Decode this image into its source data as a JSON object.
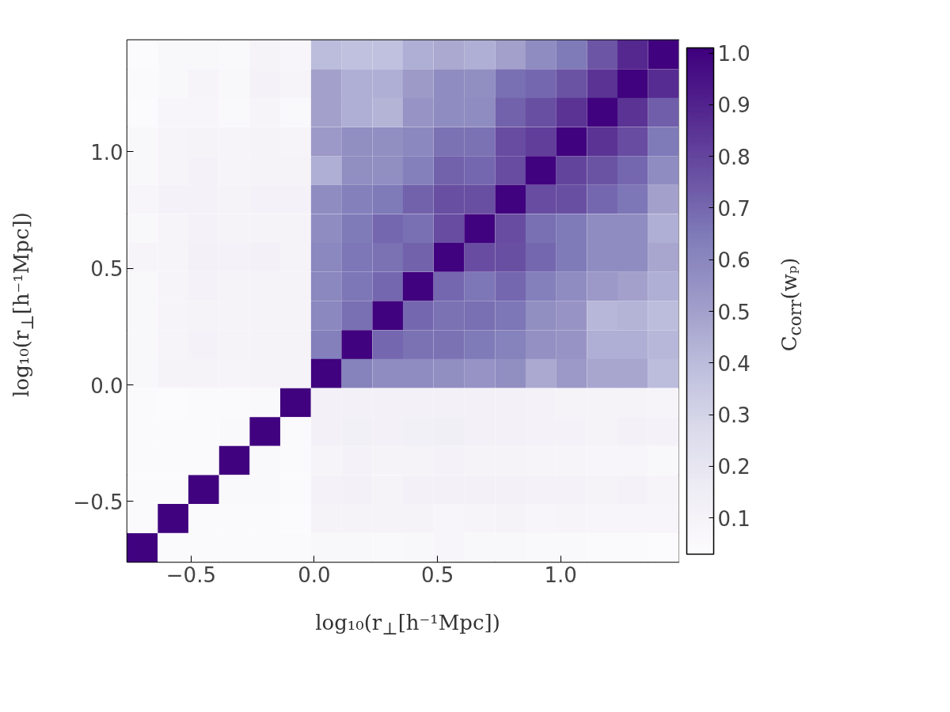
{
  "chart_data": {
    "type": "heatmap",
    "xlabel": "log₁₀(r$_{⊥}$[h⁻¹Mpc])",
    "ylabel": "log₁₀(r$_{⊥}$[h⁻¹Mpc])",
    "clabel": "C$_{corr}$(wₚ)",
    "x": [
      -0.698,
      -0.573,
      -0.449,
      -0.324,
      -0.2,
      -0.076,
      0.049,
      0.173,
      0.298,
      0.422,
      0.547,
      0.671,
      0.796,
      0.92,
      1.044,
      1.169,
      1.293,
      1.418
    ],
    "y": [
      1.418,
      1.293,
      1.169,
      1.044,
      0.92,
      0.796,
      0.671,
      0.547,
      0.422,
      0.298,
      0.173,
      0.049,
      -0.076,
      -0.2,
      -0.324,
      -0.449,
      -0.573,
      -0.698
    ],
    "xlim": [
      -0.76,
      1.48
    ],
    "ylim": [
      -0.76,
      1.48
    ],
    "xticks": [
      {
        "value": -0.5,
        "label": "−0.5"
      },
      {
        "value": 0,
        "label": "0.0"
      },
      {
        "value": 0.5,
        "label": "0.5"
      },
      {
        "value": 1,
        "label": "1.0"
      }
    ],
    "yticks": [
      {
        "value": -0.5,
        "label": "−0.5"
      },
      {
        "value": 0,
        "label": "0.0"
      },
      {
        "value": 0.5,
        "label": "0.5"
      },
      {
        "value": 1,
        "label": "1.0"
      }
    ],
    "clim": [
      0.03,
      1.01
    ],
    "cticks": [
      0.1,
      0.2,
      0.3,
      0.4,
      0.5,
      0.6,
      0.7,
      0.8,
      0.9,
      {
        "value": 1,
        "label": "1.0"
      }
    ],
    "grid": false,
    "cells": [
      [
        0.04,
        0.07,
        0.07,
        0.06,
        0.1,
        0.08,
        0.4,
        0.38,
        0.38,
        0.45,
        0.47,
        0.45,
        0.5,
        0.58,
        0.65,
        0.75,
        0.88,
        1.0
      ],
      [
        0.05,
        0.07,
        0.09,
        0.07,
        0.11,
        0.09,
        0.5,
        0.45,
        0.45,
        0.52,
        0.58,
        0.57,
        0.68,
        0.7,
        0.76,
        0.85,
        1.0,
        0.87
      ],
      [
        0.04,
        0.08,
        0.08,
        0.06,
        0.09,
        0.06,
        0.5,
        0.45,
        0.43,
        0.55,
        0.58,
        0.58,
        0.72,
        0.77,
        0.85,
        1.0,
        0.85,
        0.73
      ],
      [
        0.07,
        0.09,
        0.1,
        0.09,
        0.1,
        0.09,
        0.53,
        0.57,
        0.57,
        0.6,
        0.67,
        0.67,
        0.78,
        0.82,
        1.0,
        0.85,
        0.78,
        0.65
      ],
      [
        0.07,
        0.09,
        0.11,
        0.09,
        0.1,
        0.1,
        0.45,
        0.57,
        0.57,
        0.63,
        0.72,
        0.7,
        0.78,
        1.0,
        0.8,
        0.76,
        0.7,
        0.58
      ],
      [
        0.08,
        0.11,
        0.11,
        0.1,
        0.11,
        0.11,
        0.58,
        0.63,
        0.65,
        0.72,
        0.77,
        0.77,
        1.0,
        0.78,
        0.77,
        0.7,
        0.66,
        0.5
      ],
      [
        0.07,
        0.09,
        0.11,
        0.1,
        0.1,
        0.1,
        0.58,
        0.65,
        0.7,
        0.68,
        0.78,
        1.0,
        0.78,
        0.68,
        0.65,
        0.58,
        0.58,
        0.45
      ],
      [
        0.09,
        0.09,
        0.12,
        0.11,
        0.12,
        0.1,
        0.6,
        0.66,
        0.67,
        0.72,
        1.0,
        0.78,
        0.77,
        0.7,
        0.65,
        0.58,
        0.58,
        0.48
      ],
      [
        0.07,
        0.09,
        0.11,
        0.1,
        0.1,
        0.1,
        0.6,
        0.66,
        0.7,
        1.0,
        0.7,
        0.66,
        0.7,
        0.63,
        0.58,
        0.53,
        0.5,
        0.45
      ],
      [
        0.07,
        0.09,
        0.1,
        0.1,
        0.1,
        0.1,
        0.6,
        0.68,
        1.0,
        0.7,
        0.67,
        0.68,
        0.66,
        0.57,
        0.55,
        0.42,
        0.43,
        0.4
      ],
      [
        0.07,
        0.09,
        0.11,
        0.1,
        0.1,
        0.1,
        0.63,
        1.0,
        0.7,
        0.67,
        0.67,
        0.65,
        0.62,
        0.56,
        0.55,
        0.45,
        0.45,
        0.42
      ],
      [
        0.07,
        0.1,
        0.1,
        0.09,
        0.1,
        0.1,
        1.0,
        0.62,
        0.58,
        0.58,
        0.57,
        0.55,
        0.57,
        0.47,
        0.53,
        0.48,
        0.48,
        0.4
      ],
      [
        0.05,
        0.04,
        0.05,
        0.05,
        0.06,
        1.0,
        0.12,
        0.12,
        0.12,
        0.12,
        0.12,
        0.12,
        0.12,
        0.11,
        0.1,
        0.1,
        0.1,
        0.09
      ],
      [
        0.05,
        0.05,
        0.05,
        0.06,
        1.0,
        0.05,
        0.12,
        0.13,
        0.12,
        0.13,
        0.14,
        0.12,
        0.12,
        0.11,
        0.11,
        0.1,
        0.12,
        0.11
      ],
      [
        0.05,
        0.05,
        0.05,
        1.0,
        0.06,
        0.05,
        0.09,
        0.11,
        0.1,
        0.1,
        0.11,
        0.1,
        0.1,
        0.09,
        0.09,
        0.08,
        0.08,
        0.07
      ],
      [
        0.05,
        0.05,
        1.0,
        0.06,
        0.06,
        0.05,
        0.11,
        0.12,
        0.1,
        0.12,
        0.12,
        0.12,
        0.12,
        0.11,
        0.11,
        0.1,
        0.11,
        0.09
      ],
      [
        0.05,
        1.0,
        0.05,
        0.05,
        0.05,
        0.04,
        0.1,
        0.1,
        0.1,
        0.1,
        0.08,
        0.09,
        0.1,
        0.08,
        0.09,
        0.08,
        0.08,
        0.08
      ],
      [
        1.0,
        0.05,
        0.05,
        0.05,
        0.05,
        0.05,
        0.07,
        0.07,
        0.06,
        0.07,
        0.08,
        0.07,
        0.07,
        0.06,
        0.06,
        0.05,
        0.05,
        0.04
      ]
    ]
  }
}
